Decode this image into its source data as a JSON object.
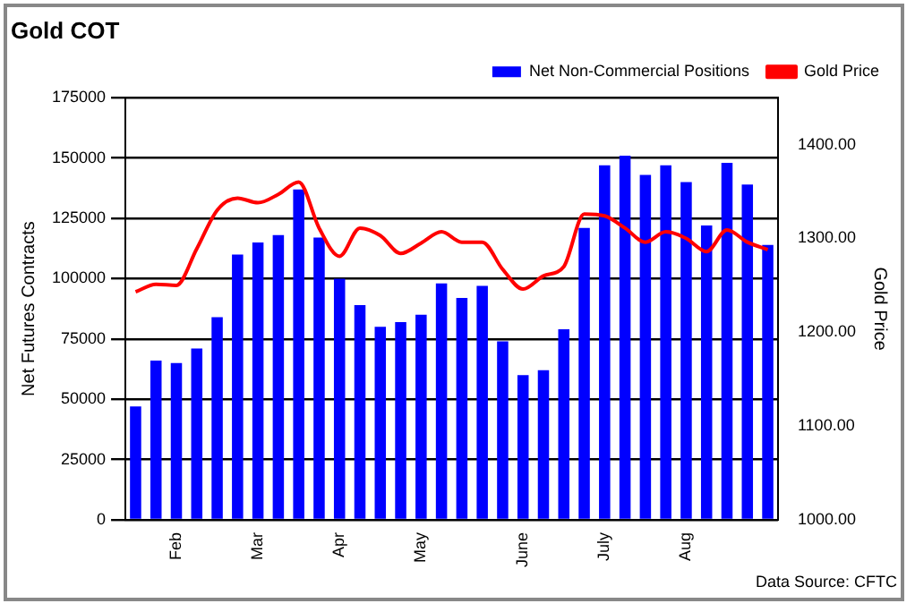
{
  "chart_data": {
    "type": "bar",
    "title": "Gold COT",
    "ylabel": "Net Futures Contracts",
    "y2label": "Gold Price",
    "categories": [
      null,
      null,
      "Feb",
      null,
      null,
      null,
      "Mar",
      null,
      null,
      null,
      "Apr",
      null,
      null,
      null,
      "May",
      null,
      null,
      null,
      null,
      "June",
      null,
      null,
      null,
      "July",
      null,
      null,
      null,
      "Aug",
      null,
      null,
      null,
      null
    ],
    "series": [
      {
        "name": "Net Non-Commercial Positions",
        "color": "#0000ff",
        "values": [
          47000,
          66000,
          65000,
          71000,
          84000,
          110000,
          115000,
          118000,
          137000,
          117000,
          100000,
          89000,
          80000,
          82000,
          85000,
          98000,
          92000,
          97000,
          74000,
          60000,
          62000,
          79000,
          121000,
          147000,
          151000,
          143000,
          147000,
          140000,
          122000,
          148000,
          139000,
          114000
        ]
      },
      {
        "name": "Gold Price",
        "type": "line",
        "axis": "y2",
        "color": "#ff0000",
        "marker": "none",
        "values": [
          1243,
          1251,
          1250,
          1289,
          1330,
          1343,
          1338,
          1347,
          1360,
          1311,
          1281,
          1311,
          1303,
          1284,
          1295,
          1307,
          1296,
          1296,
          1267,
          1246,
          1260,
          1270,
          1326,
          1324,
          1311,
          1296,
          1307,
          1300,
          1286,
          1309,
          1296,
          1288
        ]
      }
    ],
    "ylim": [
      0,
      175000
    ],
    "yticks": [
      0,
      25000,
      50000,
      75000,
      100000,
      125000,
      150000,
      175000
    ],
    "y2lim": [
      1000,
      1450
    ],
    "y2ticks": [
      {
        "value": 1000,
        "label": "1000.00"
      },
      {
        "value": 1100,
        "label": "1100.00"
      },
      {
        "value": 1200,
        "label": "1200.00"
      },
      {
        "value": 1300,
        "label": "1300.00"
      },
      {
        "value": 1400,
        "label": "1400.00"
      }
    ],
    "grid": "y",
    "legend": "top right",
    "annotations": [
      "Data Source: CFTC"
    ]
  }
}
